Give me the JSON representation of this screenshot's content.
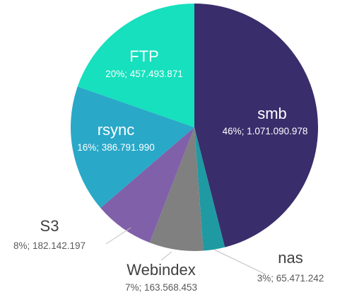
{
  "chart_data": {
    "type": "pie",
    "slices": [
      {
        "name": "smb",
        "pct_label": "46%",
        "value_label": "1.071.090.978",
        "value": 1071090978,
        "color": "#3a2d6b"
      },
      {
        "name": "nas",
        "pct_label": "3%",
        "value_label": "65.471.242",
        "value": 65471242,
        "color": "#1f9aa3"
      },
      {
        "name": "Webindex",
        "pct_label": "7%",
        "value_label": "163.568.453",
        "value": 163568453,
        "color": "#808080"
      },
      {
        "name": "S3",
        "pct_label": "8%",
        "value_label": "182.142.197",
        "value": 182142197,
        "color": "#8060a8"
      },
      {
        "name": "rsync",
        "pct_label": "16%",
        "value_label": "386.791.990",
        "value": 386791990,
        "color": "#2aa8c8"
      },
      {
        "name": "FTP",
        "pct_label": "20%",
        "value_label": "457.493.871",
        "value": 457493871,
        "color": "#16e0bd"
      }
    ],
    "start_angle": "12 o'clock",
    "direction": "clockwise",
    "legend": "none",
    "data_labels": "category name above percentage; value"
  }
}
